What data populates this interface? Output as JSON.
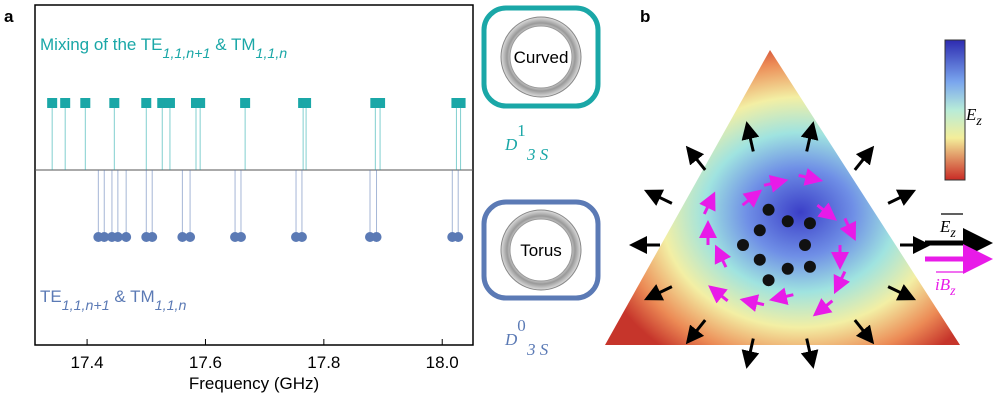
{
  "panel_labels": [
    "a",
    "b"
  ],
  "chart_data": {
    "type": "stem",
    "xlabel": "Frequency (GHz)",
    "xlim": [
      17.312,
      18.052
    ],
    "xticks": [
      17.4,
      17.6,
      17.8,
      {
        "value": 18.0,
        "label": "18.0"
      }
    ],
    "series": [
      {
        "label": [
          "Mixing of the TE",
          "1,1,n+1",
          " & TM",
          "1,1,n"
        ],
        "color": "#1aa7a7",
        "marker": "square",
        "x": [
          17.341,
          17.363,
          17.397,
          17.446,
          17.5,
          17.527,
          17.54,
          17.584,
          17.591,
          17.667,
          17.765,
          17.77,
          17.887,
          17.895,
          18.024,
          18.031
        ]
      },
      {
        "label": [
          "TE",
          "1,1,n+1",
          " & TM",
          "1,1,n"
        ],
        "color": "#5b7ab5",
        "marker": "circle",
        "x": [
          17.419,
          17.429,
          17.442,
          17.452,
          17.466,
          17.5,
          17.51,
          17.561,
          17.574,
          17.65,
          17.66,
          17.753,
          17.763,
          17.878,
          17.889,
          18.017,
          18.027
        ]
      }
    ]
  },
  "insets": [
    {
      "text": "Curved",
      "symbol": {
        "base": "D",
        "sup": "1",
        "sub": "3 S"
      }
    },
    {
      "text": "Torus",
      "symbol": {
        "base": "D",
        "sup": "0",
        "sub": "3 S"
      }
    }
  ],
  "field_panel": {
    "colorbar_label": [
      "E",
      "z"
    ],
    "arrow_labels": [
      [
        "E",
        "z"
      ],
      [
        "iB",
        "z"
      ]
    ]
  }
}
